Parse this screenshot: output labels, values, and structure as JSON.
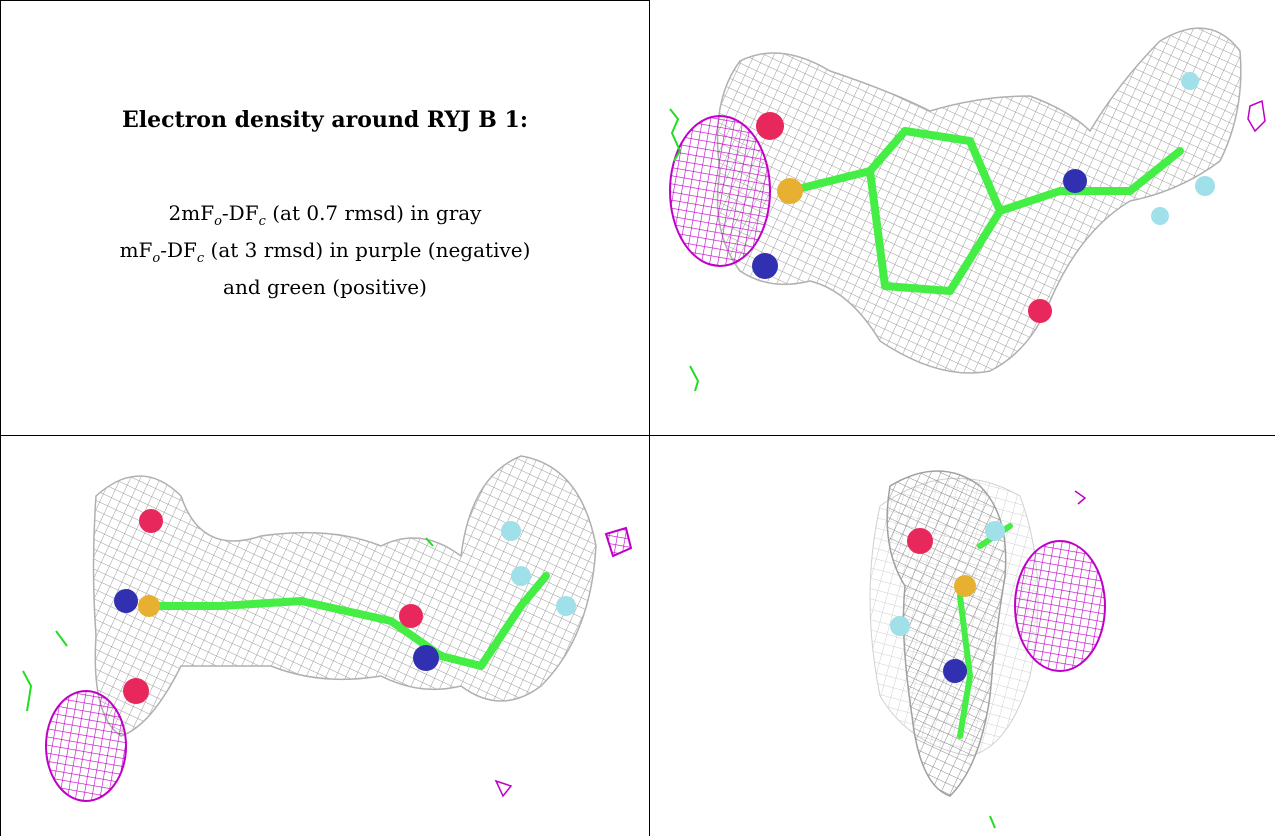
{
  "caption": {
    "title": "Electron density around RYJ B 1:",
    "line1": {
      "a": "2mF",
      "s1": "o",
      "b": "-DF",
      "s2": "c",
      "c": " (at 0.7 rmsd) in gray"
    },
    "line2": {
      "a": "mF",
      "s1": "o",
      "b": "-DF",
      "s2": "c",
      "c": " (at 3 rmsd) in purple (negative)"
    },
    "line3": "and green (positive)"
  },
  "colors": {
    "mesh_gray": "#a8a8a8",
    "mesh_purple": "#c000c8",
    "mesh_green": "#22dd22",
    "carbon": "#44ee44",
    "oxygen": "#e8285c",
    "nitrogen": "#3030b0",
    "sulfur": "#e8b030",
    "fluorine": "#a0e0e8",
    "border": "#000000"
  },
  "views": [
    {
      "name": "view-top-right",
      "icon": "molecule-density-view"
    },
    {
      "name": "view-bottom-left",
      "icon": "molecule-density-view"
    },
    {
      "name": "view-bottom-right",
      "icon": "molecule-density-view"
    }
  ]
}
